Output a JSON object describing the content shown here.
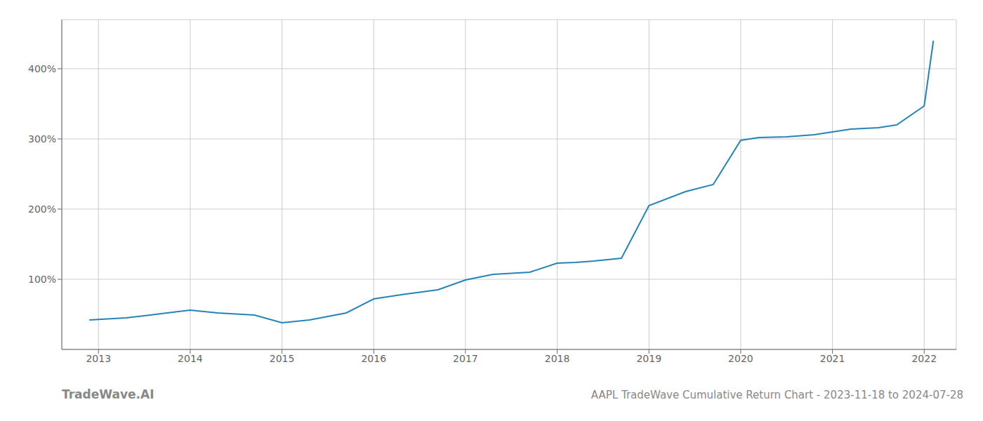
{
  "chart_data": {
    "type": "line",
    "title": "AAPL TradeWave Cumulative Return Chart - 2023-11-18 to 2024-07-28",
    "annotations": [
      "TradeWave.AI"
    ],
    "x": [
      2012.9,
      2013.3,
      2013.5,
      2014.0,
      2014.3,
      2014.7,
      2015.0,
      2015.3,
      2015.7,
      2016.0,
      2016.3,
      2016.7,
      2017.0,
      2017.3,
      2017.7,
      2018.0,
      2018.2,
      2018.4,
      2018.7,
      2019.0,
      2019.4,
      2019.7,
      2020.0,
      2020.2,
      2020.5,
      2020.8,
      2021.0,
      2021.2,
      2021.5,
      2021.7,
      2022.0,
      2022.1
    ],
    "values": [
      42,
      45,
      48,
      56,
      52,
      49,
      38,
      42,
      52,
      72,
      78,
      85,
      99,
      107,
      110,
      123,
      124,
      126,
      130,
      205,
      225,
      235,
      298,
      302,
      303,
      306,
      310,
      314,
      316,
      320,
      347,
      440
    ],
    "color": "#2484b8",
    "xlim": [
      2012.6,
      2022.35
    ],
    "ylim": [
      0,
      470
    ],
    "xticks": [
      2013,
      2014,
      2015,
      2016,
      2017,
      2018,
      2019,
      2020,
      2021,
      2022
    ],
    "yticks": [
      {
        "value": 100,
        "label": "100%"
      },
      {
        "value": 200,
        "label": "200%"
      },
      {
        "value": 300,
        "label": "300%"
      },
      {
        "value": 400,
        "label": "400%"
      }
    ],
    "grid": true
  }
}
